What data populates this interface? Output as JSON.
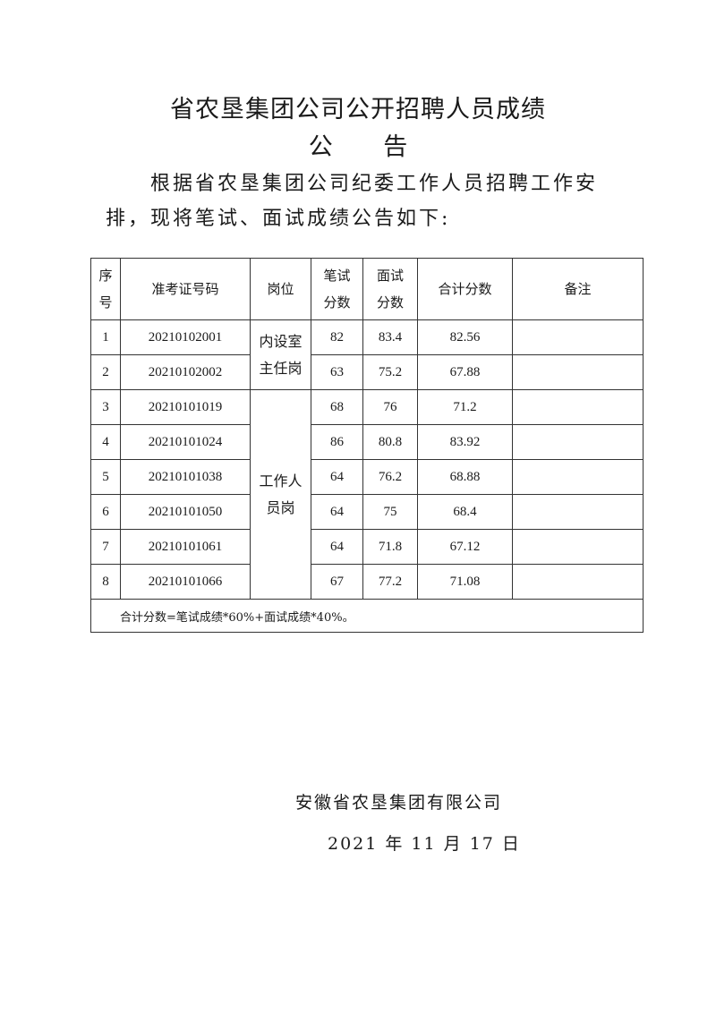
{
  "title": "省农垦集团公司公开招聘人员成绩",
  "subtitle": "公 告",
  "intro": "根据省农垦集团公司纪委工作人员招聘工作安排，现将笔试、面试成绩公告如下:",
  "table": {
    "headers": {
      "seq": "序号",
      "id": "准考证号码",
      "role": "岗位",
      "written": "笔试分数",
      "interview": "面试分数",
      "total": "合计分数",
      "remark": "备注"
    },
    "roles": [
      "内设室主任岗",
      "工作人员岗"
    ],
    "rows": [
      {
        "seq": "1",
        "id": "20210102001",
        "written": "82",
        "interview": "83.4",
        "total": "82.56",
        "remark": ""
      },
      {
        "seq": "2",
        "id": "20210102002",
        "written": "63",
        "interview": "75.2",
        "total": "67.88",
        "remark": ""
      },
      {
        "seq": "3",
        "id": "20210101019",
        "written": "68",
        "interview": "76",
        "total": "71.2",
        "remark": ""
      },
      {
        "seq": "4",
        "id": "20210101024",
        "written": "86",
        "interview": "80.8",
        "total": "83.92",
        "remark": ""
      },
      {
        "seq": "5",
        "id": "20210101038",
        "written": "64",
        "interview": "76.2",
        "total": "68.88",
        "remark": ""
      },
      {
        "seq": "6",
        "id": "20210101050",
        "written": "64",
        "interview": "75",
        "total": "68.4",
        "remark": ""
      },
      {
        "seq": "7",
        "id": "20210101061",
        "written": "64",
        "interview": "71.8",
        "total": "67.12",
        "remark": ""
      },
      {
        "seq": "8",
        "id": "20210101066",
        "written": "67",
        "interview": "77.2",
        "total": "71.08",
        "remark": ""
      }
    ],
    "note": "合计分数=笔试成绩*60%+面试成绩*40%。"
  },
  "signature": "安徽省农垦集团有限公司",
  "date": "2021 年 11 月 17 日"
}
